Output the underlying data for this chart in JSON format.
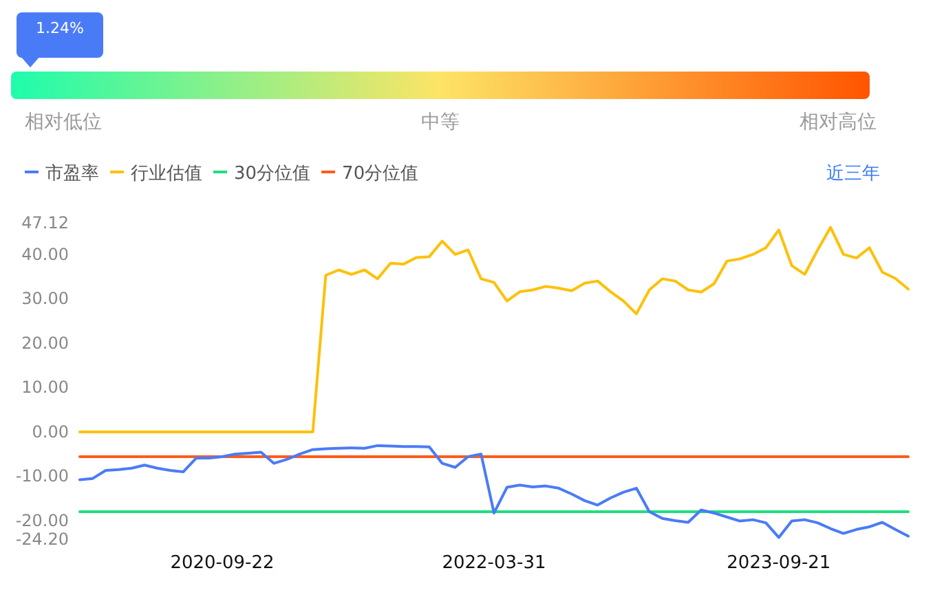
{
  "chart_data": [
    {
      "type": "other",
      "annotations": [
        "相对低位",
        "中等",
        "相对高位"
      ],
      "values": [
        1.24
      ],
      "value_labels": [
        "1.24%"
      ]
    },
    {
      "type": "line",
      "categories": [
        null,
        null,
        null,
        null,
        null,
        null,
        null,
        null,
        null,
        null,
        null,
        "2020-09-22",
        null,
        null,
        null,
        null,
        null,
        null,
        null,
        null,
        null,
        null,
        null,
        null,
        null,
        null,
        null,
        null,
        null,
        null,
        null,
        null,
        "2022-03-31",
        null,
        null,
        null,
        null,
        null,
        null,
        null,
        null,
        null,
        null,
        null,
        null,
        null,
        null,
        null,
        null,
        null,
        null,
        null,
        null,
        null,
        "2023-09-21",
        null,
        null,
        null,
        null,
        null,
        null,
        null,
        null,
        null,
        null
      ],
      "series": [
        {
          "name": "市盈率",
          "color": "#4a7bf7",
          "values": [
            -10.8,
            -10.5,
            -8.7,
            -8.5,
            -8.2,
            -7.5,
            -8.2,
            -8.7,
            -9.0,
            -5.9,
            -5.9,
            -5.6,
            -5.0,
            -4.8,
            -4.6,
            -7.1,
            -6.2,
            -5.0,
            -4.0,
            -3.8,
            -3.7,
            -3.6,
            -3.7,
            -3.1,
            -3.2,
            -3.3,
            -3.3,
            -3.4,
            -7.1,
            -8.0,
            -5.6,
            -5.0,
            -18.3,
            -12.5,
            -12.0,
            -12.4,
            -12.2,
            -12.7,
            -14.0,
            -15.5,
            -16.5,
            -14.9,
            -13.6,
            -12.7,
            -18.0,
            -19.5,
            -20.0,
            -20.4,
            -17.6,
            -18.3,
            -19.2,
            -20.1,
            -19.8,
            -20.5,
            -23.8,
            -20.1,
            -19.8,
            -20.5,
            -21.8,
            -22.9,
            -22.0,
            -21.4,
            -20.4,
            -22.0,
            -23.5
          ]
        },
        {
          "name": "行业估值",
          "color": "#fcc10a",
          "values": [
            0,
            0,
            0,
            0,
            0,
            0,
            0,
            0,
            0,
            0,
            0,
            0,
            0,
            0,
            0,
            0,
            0,
            0,
            0,
            35.3,
            36.5,
            35.5,
            36.5,
            34.5,
            38.0,
            37.8,
            39.3,
            39.5,
            43.0,
            40.0,
            41.0,
            34.5,
            33.7,
            29.5,
            31.6,
            32.0,
            32.8,
            32.4,
            31.8,
            33.5,
            34.0,
            31.6,
            29.5,
            26.6,
            32.0,
            34.5,
            34.0,
            32.0,
            31.5,
            33.4,
            38.5,
            39.0,
            40.0,
            41.5,
            45.5,
            37.5,
            35.5,
            41.0,
            46.1,
            40.0,
            39.2,
            41.5,
            36.0,
            34.6,
            32.2
          ]
        },
        {
          "name": "30分位值",
          "color": "#1ede7f",
          "values": [
            -18.0,
            -18.0,
            -18.0,
            -18.0,
            -18.0,
            -18.0,
            -18.0,
            -18.0,
            -18.0,
            -18.0,
            -18.0,
            -18.0,
            -18.0,
            -18.0,
            -18.0,
            -18.0,
            -18.0,
            -18.0,
            -18.0,
            -18.0,
            -18.0,
            -18.0,
            -18.0,
            -18.0,
            -18.0,
            -18.0,
            -18.0,
            -18.0,
            -18.0,
            -18.0,
            -18.0,
            -18.0,
            -18.0,
            -18.0,
            -18.0,
            -18.0,
            -18.0,
            -18.0,
            -18.0,
            -18.0,
            -18.0,
            -18.0,
            -18.0,
            -18.0,
            -18.0,
            -18.0,
            -18.0,
            -18.0,
            -18.0,
            -18.0,
            -18.0,
            -18.0,
            -18.0,
            -18.0,
            -18.0,
            -18.0,
            -18.0,
            -18.0,
            -18.0,
            -18.0,
            -18.0,
            -18.0,
            -18.0,
            -18.0,
            -18.0
          ]
        },
        {
          "name": "70分位值",
          "color": "#fd5c1a",
          "values": [
            -5.6,
            -5.6,
            -5.6,
            -5.6,
            -5.6,
            -5.6,
            -5.6,
            -5.6,
            -5.6,
            -5.6,
            -5.6,
            -5.6,
            -5.6,
            -5.6,
            -5.6,
            -5.6,
            -5.6,
            -5.6,
            -5.6,
            -5.6,
            -5.6,
            -5.6,
            -5.6,
            -5.6,
            -5.6,
            -5.6,
            -5.6,
            -5.6,
            -5.6,
            -5.6,
            -5.6,
            -5.6,
            -5.6,
            -5.6,
            -5.6,
            -5.6,
            -5.6,
            -5.6,
            -5.6,
            -5.6,
            -5.6,
            -5.6,
            -5.6,
            -5.6,
            -5.6,
            -5.6,
            -5.6,
            -5.6,
            -5.6,
            -5.6,
            -5.6,
            -5.6,
            -5.6,
            -5.6,
            -5.6,
            -5.6,
            -5.6,
            -5.6,
            -5.6,
            -5.6,
            -5.6,
            -5.6,
            -5.6,
            -5.6,
            -5.6
          ]
        }
      ],
      "ylim": [
        -24.2,
        47.12
      ],
      "yticks": [
        {
          "value": 47.12,
          "label": "47.12"
        },
        {
          "value": 40,
          "label": "40.00"
        },
        {
          "value": 30,
          "label": "30.00"
        },
        {
          "value": 20,
          "label": "20.00"
        },
        {
          "value": 10,
          "label": "10.00"
        },
        {
          "value": 0,
          "label": "0.00"
        },
        {
          "value": -10,
          "label": "-10.00"
        },
        {
          "value": -20,
          "label": "-20.00"
        },
        {
          "value": -24.2,
          "label": "-24.20"
        }
      ],
      "legend": "top left",
      "grid": false,
      "marker": "none",
      "line_style": "solid",
      "annotations": [
        "近三年"
      ]
    }
  ]
}
